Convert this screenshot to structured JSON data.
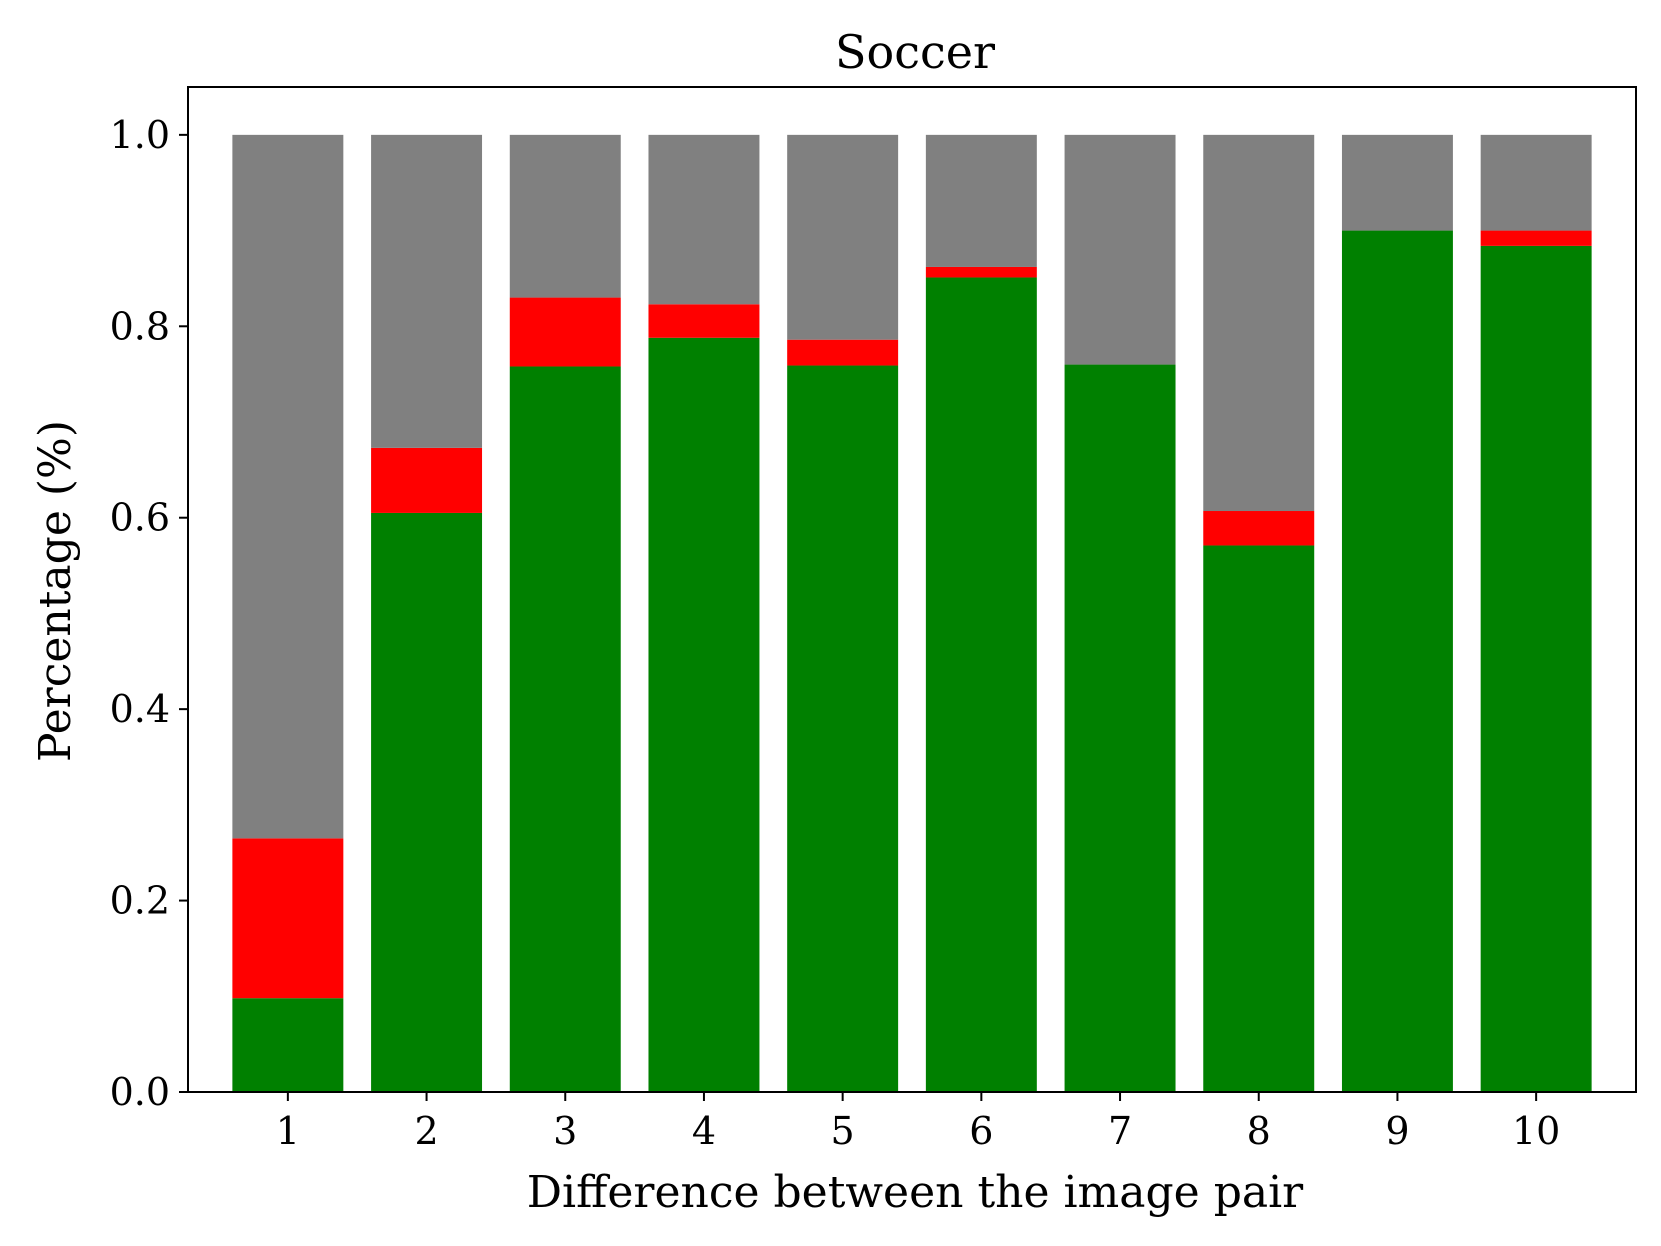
{
  "chart_data": {
    "type": "bar",
    "stacked": true,
    "title": "Soccer",
    "xlabel": "Difference between the image pair",
    "ylabel": "Percentage (%)",
    "categories": [
      "1",
      "2",
      "3",
      "4",
      "5",
      "6",
      "7",
      "8",
      "9",
      "10"
    ],
    "ylim": [
      0,
      1.05
    ],
    "yticks": [
      "0.0",
      "0.2",
      "0.4",
      "0.6",
      "0.8",
      "1.0"
    ],
    "ytick_values": [
      0,
      0.2,
      0.4,
      0.6,
      0.8,
      1.0
    ],
    "grid": false,
    "legend": "none",
    "series": [
      {
        "color": "#008000",
        "values": [
          0.098,
          0.605,
          0.758,
          0.788,
          0.759,
          0.851,
          0.76,
          0.571,
          0.9,
          0.884
        ]
      },
      {
        "color": "#ff0000",
        "values": [
          0.167,
          0.068,
          0.072,
          0.035,
          0.027,
          0.011,
          0.0,
          0.036,
          0.0,
          0.016
        ]
      },
      {
        "color": "#808080",
        "values": [
          0.735,
          0.327,
          0.17,
          0.177,
          0.214,
          0.138,
          0.24,
          0.393,
          0.1,
          0.1
        ]
      }
    ]
  }
}
